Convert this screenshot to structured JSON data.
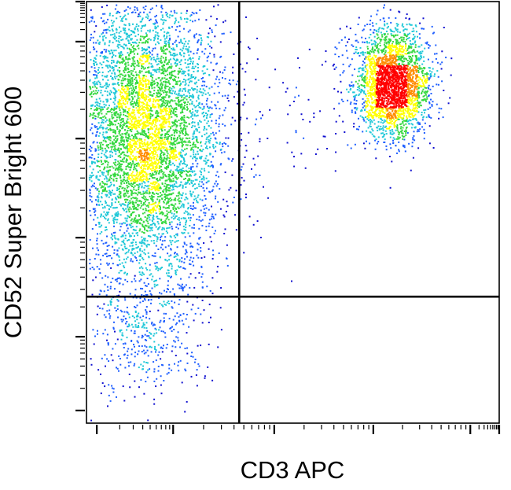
{
  "chart_data": {
    "type": "scatter",
    "plot_style": "density pseudocolor dot plot",
    "title": "",
    "xlabel": "CD3 APC",
    "ylabel": "CD52 Super Bright 600",
    "axis_scale": {
      "x": "log",
      "y": "log"
    },
    "tick_labels_printed": false,
    "grid": false,
    "legend": "none",
    "density_colors": [
      "#1010d0",
      "#1f5fff",
      "#20c8d8",
      "#35d840",
      "#ffff00",
      "#ff8c00",
      "#ff0000"
    ],
    "gates": {
      "vertical_at_x_fraction": 0.37,
      "horizontal_at_y_fraction": 0.3
    },
    "populations": [
      {
        "quadrant": "upper-left",
        "description_x": "CD3 negative",
        "description_y": "CD52 positive",
        "x_center_fraction": 0.14,
        "y_center_fraction": 0.72,
        "x_spread": 0.09,
        "y_spread": 0.16,
        "relative_count": 0.66
      },
      {
        "quadrant": "upper-right",
        "description_x": "CD3 positive",
        "description_y": "CD52 bright",
        "x_center_fraction": 0.74,
        "y_center_fraction": 0.81,
        "x_spread": 0.045,
        "y_spread": 0.065,
        "relative_count": 0.3
      },
      {
        "quadrant": "lower-left",
        "description_x": "CD3 negative",
        "description_y": "CD52 negative",
        "x_center_fraction": 0.14,
        "y_center_fraction": 0.2,
        "x_spread": 0.07,
        "y_spread": 0.07,
        "relative_count": 0.04
      }
    ]
  }
}
